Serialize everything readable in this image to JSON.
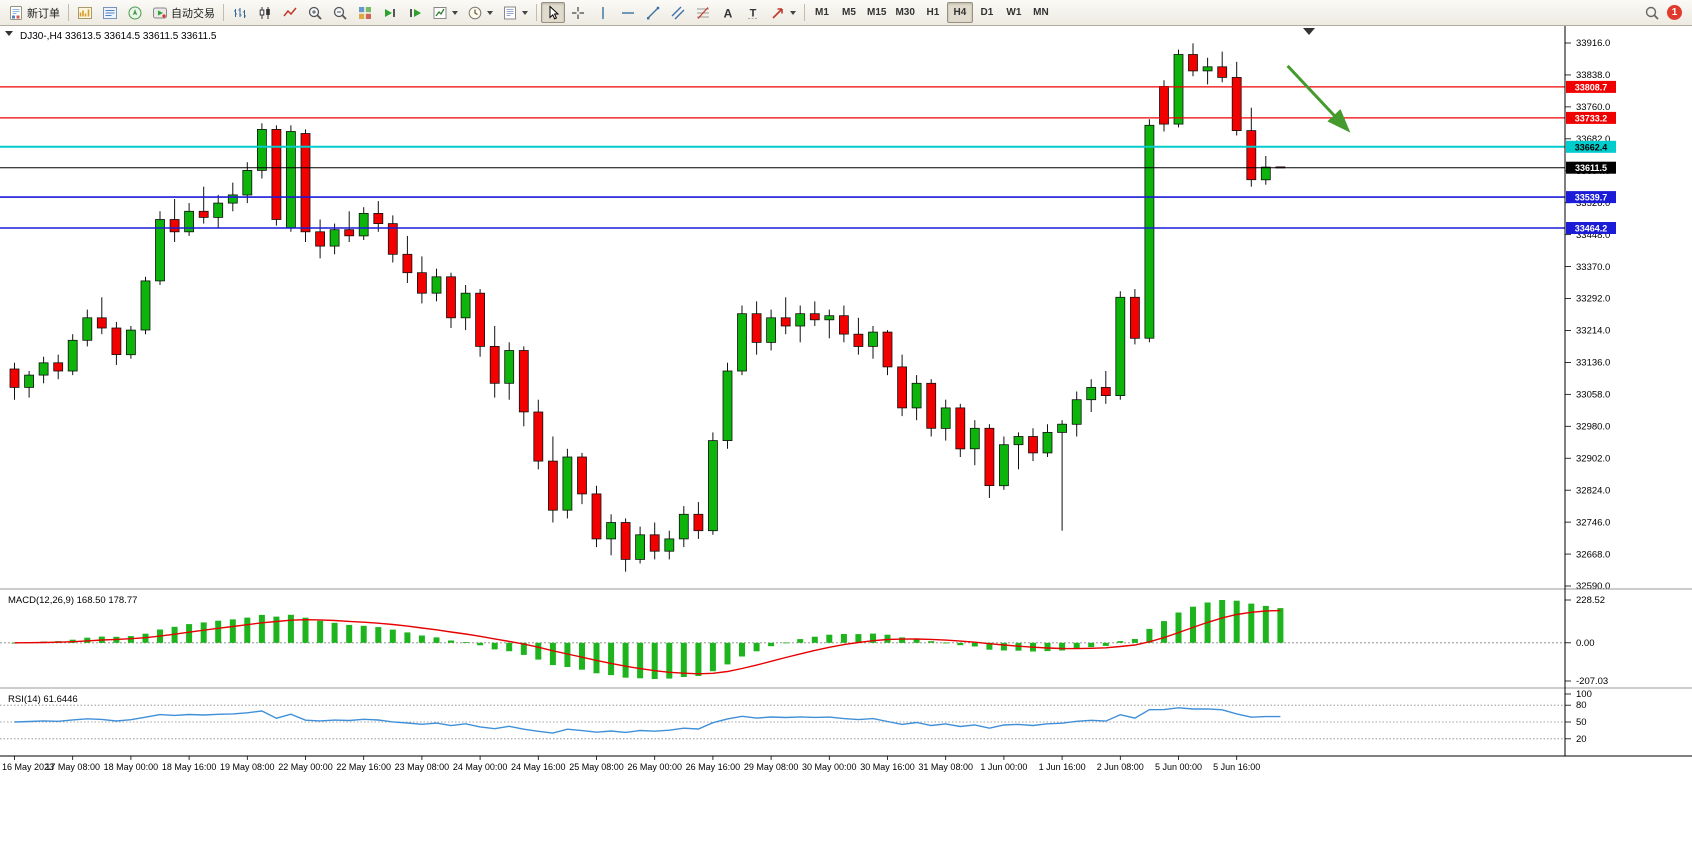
{
  "toolbar": {
    "new_order_label": "新订单",
    "autotrading_label": "自动交易",
    "timeframes": [
      "M1",
      "M5",
      "M15",
      "M30",
      "H1",
      "H4",
      "D1",
      "W1",
      "MN"
    ],
    "active_timeframe": "H4",
    "notification_count": "1",
    "icon_glyphs": {
      "text_tool": "A",
      "label_tool": "T"
    }
  },
  "chart_data": {
    "type": "candlestick-ohlc",
    "symbol": "DJ30-",
    "timeframe": "H4",
    "info_line": "DJ30-,H4 33613.5 33614.5 33611.5 33611.5",
    "up_color": "#0cb40c",
    "down_color": "#f20000",
    "price_axis": {
      "max": 33916.0,
      "min": 32590.0,
      "step": 78.0,
      "tick_labels": [
        "33916.0",
        "33838.0",
        "33760.0",
        "33682.0",
        "33604.0",
        "33526.0",
        "33448.0",
        "33370.0",
        "33292.0",
        "33214.0",
        "33136.0",
        "33058.0",
        "32980.0",
        "32902.0",
        "32824.0",
        "32746.0",
        "32668.0",
        "32590.0"
      ]
    },
    "horizontal_levels": [
      {
        "price": 33808.7,
        "label": "33808.7",
        "color": "#f00000",
        "text_color": "#ffffff",
        "width": 1.3
      },
      {
        "price": 33733.2,
        "label": "33733.2",
        "color": "#f00000",
        "text_color": "#ffffff",
        "width": 1.3
      },
      {
        "price": 33662.4,
        "label": "33662.4",
        "color": "#00cccc",
        "text_color": "#000000",
        "width": 2
      },
      {
        "price": 33611.5,
        "label": "33611.5",
        "color": "#000000",
        "text_color": "#ffffff",
        "width": 1
      },
      {
        "price": 33539.7,
        "label": "33539.7",
        "color": "#1c1cd8",
        "text_color": "#ffffff",
        "width": 1.6
      },
      {
        "price": 33464.2,
        "label": "33464.2",
        "color": "#1c1cd8",
        "text_color": "#ffffff",
        "width": 1.6
      }
    ],
    "bars_per_time_label": 4,
    "time_labels": [
      "16 May 2023",
      "17 May 08:00",
      "18 May 00:00",
      "18 May 16:00",
      "19 May 08:00",
      "22 May 00:00",
      "22 May 16:00",
      "23 May 08:00",
      "24 May 00:00",
      "24 May 16:00",
      "25 May 08:00",
      "26 May 00:00",
      "26 May 16:00",
      "29 May 08:00",
      "30 May 00:00",
      "30 May 16:00",
      "31 May 08:00",
      "1 Jun 00:00",
      "1 Jun 16:00",
      "2 Jun 08:00",
      "5 Jun 00:00",
      "5 Jun 16:00"
    ],
    "candles": [
      [
        33120,
        33135,
        33045,
        33075
      ],
      [
        33075,
        33115,
        33050,
        33105
      ],
      [
        33105,
        33150,
        33085,
        33135
      ],
      [
        33135,
        33155,
        33095,
        33115
      ],
      [
        33115,
        33205,
        33105,
        33190
      ],
      [
        33190,
        33265,
        33175,
        33245
      ],
      [
        33245,
        33295,
        33205,
        33220
      ],
      [
        33220,
        33235,
        33130,
        33155
      ],
      [
        33155,
        33225,
        33145,
        33215
      ],
      [
        33215,
        33345,
        33205,
        33335
      ],
      [
        33335,
        33505,
        33325,
        33485
      ],
      [
        33485,
        33535,
        33430,
        33455
      ],
      [
        33455,
        33525,
        33445,
        33505
      ],
      [
        33505,
        33565,
        33475,
        33490
      ],
      [
        33490,
        33545,
        33465,
        33525
      ],
      [
        33525,
        33575,
        33505,
        33545
      ],
      [
        33545,
        33625,
        33525,
        33605
      ],
      [
        33605,
        33720,
        33585,
        33705
      ],
      [
        33705,
        33715,
        33470,
        33485
      ],
      [
        33465,
        33715,
        33455,
        33700
      ],
      [
        33695,
        33705,
        33430,
        33455
      ],
      [
        33455,
        33485,
        33390,
        33420
      ],
      [
        33420,
        33475,
        33400,
        33460
      ],
      [
        33460,
        33505,
        33430,
        33445
      ],
      [
        33445,
        33515,
        33435,
        33500
      ],
      [
        33500,
        33530,
        33455,
        33475
      ],
      [
        33475,
        33495,
        33380,
        33400
      ],
      [
        33400,
        33445,
        33330,
        33355
      ],
      [
        33355,
        33395,
        33280,
        33305
      ],
      [
        33305,
        33365,
        33285,
        33345
      ],
      [
        33345,
        33355,
        33220,
        33245
      ],
      [
        33245,
        33325,
        33215,
        33305
      ],
      [
        33305,
        33315,
        33150,
        33175
      ],
      [
        33175,
        33225,
        33050,
        33085
      ],
      [
        33085,
        33185,
        33045,
        33165
      ],
      [
        33165,
        33175,
        32980,
        33015
      ],
      [
        33015,
        33045,
        32875,
        32895
      ],
      [
        32895,
        32955,
        32745,
        32775
      ],
      [
        32775,
        32925,
        32755,
        32905
      ],
      [
        32905,
        32915,
        32790,
        32815
      ],
      [
        32815,
        32835,
        32685,
        32705
      ],
      [
        32705,
        32765,
        32665,
        32745
      ],
      [
        32745,
        32755,
        32625,
        32655
      ],
      [
        32655,
        32735,
        32645,
        32715
      ],
      [
        32715,
        32745,
        32655,
        32675
      ],
      [
        32675,
        32725,
        32655,
        32705
      ],
      [
        32705,
        32785,
        32685,
        32765
      ],
      [
        32765,
        32795,
        32705,
        32725
      ],
      [
        32725,
        32965,
        32715,
        32945
      ],
      [
        32945,
        33135,
        32925,
        33115
      ],
      [
        33115,
        33275,
        33105,
        33255
      ],
      [
        33255,
        33285,
        33155,
        33185
      ],
      [
        33185,
        33265,
        33165,
        33245
      ],
      [
        33245,
        33295,
        33205,
        33225
      ],
      [
        33225,
        33275,
        33185,
        33255
      ],
      [
        33255,
        33285,
        33225,
        33240
      ],
      [
        33240,
        33265,
        33195,
        33250
      ],
      [
        33250,
        33275,
        33185,
        33205
      ],
      [
        33205,
        33245,
        33155,
        33175
      ],
      [
        33175,
        33225,
        33145,
        33210
      ],
      [
        33210,
        33215,
        33105,
        33125
      ],
      [
        33125,
        33155,
        33005,
        33025
      ],
      [
        33025,
        33105,
        32995,
        33085
      ],
      [
        33085,
        33095,
        32955,
        32975
      ],
      [
        32975,
        33045,
        32945,
        33025
      ],
      [
        33025,
        33035,
        32905,
        32925
      ],
      [
        32925,
        32995,
        32885,
        32975
      ],
      [
        32975,
        32985,
        32805,
        32835
      ],
      [
        32835,
        32955,
        32825,
        32935
      ],
      [
        32935,
        32965,
        32875,
        32955
      ],
      [
        32955,
        32975,
        32895,
        32915
      ],
      [
        32915,
        32985,
        32905,
        32965
      ],
      [
        32965,
        32995,
        32725,
        32985
      ],
      [
        32985,
        33065,
        32955,
        33045
      ],
      [
        33045,
        33095,
        33015,
        33075
      ],
      [
        33075,
        33115,
        33035,
        33055
      ],
      [
        33055,
        33310,
        33045,
        33295
      ],
      [
        33295,
        33315,
        33180,
        33195
      ],
      [
        33195,
        33730,
        33185,
        33715
      ],
      [
        33810,
        33825,
        33700,
        33718
      ],
      [
        33718,
        33900,
        33710,
        33888
      ],
      [
        33888,
        33915,
        33835,
        33848
      ],
      [
        33848,
        33880,
        33815,
        33858
      ],
      [
        33858,
        33895,
        33820,
        33832
      ],
      [
        33832,
        33870,
        33690,
        33702
      ],
      [
        33702,
        33758,
        33565,
        33582
      ],
      [
        33582,
        33640,
        33570,
        33613
      ],
      [
        33613.5,
        33614.5,
        33611.5,
        33611.5
      ]
    ],
    "indicators": [
      {
        "name": "MACD",
        "label": "MACD(12,26,9)",
        "params": [
          12,
          26,
          9
        ],
        "display_values": [
          "168.50",
          "178.77"
        ],
        "axis_labels": [
          "228.52",
          "0.00",
          "-207.03"
        ],
        "histogram_color": "#1eb41e",
        "signal_color": "#e60000"
      },
      {
        "name": "RSI",
        "label": "RSI(14)",
        "params": [
          14
        ],
        "display_value": "61.6446",
        "axis_labels": [
          "100",
          "80",
          "50",
          "20"
        ],
        "levels": [
          80,
          50,
          20
        ],
        "line_color": "#4090d8"
      }
    ],
    "annotation_arrow": {
      "color": "#449a2d",
      "width": 3,
      "from": {
        "bar": 87.5,
        "price": 33860
      },
      "to": {
        "bar": 91.6,
        "price": 33705
      }
    }
  }
}
